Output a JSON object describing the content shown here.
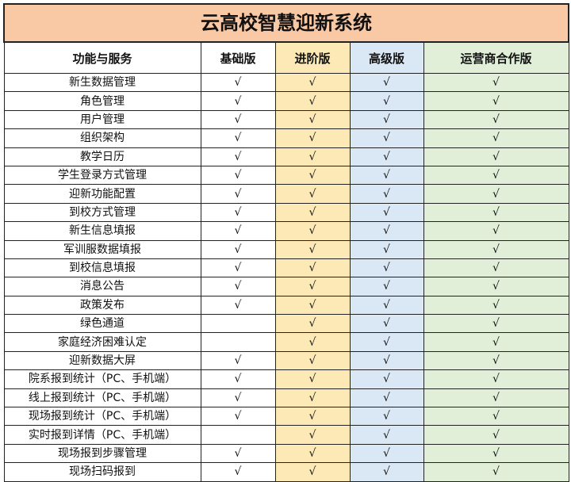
{
  "title": "云高校智慧迎新系统",
  "headers": [
    "功能与服务",
    "基础版",
    "进阶版",
    "高级版",
    "运营商合作版"
  ],
  "colors": {
    "title": "#f9c8a4",
    "advanced": "#fde9b5",
    "premium": "#dae8f5",
    "operator": "#e1efd9"
  },
  "check_mark": "√",
  "rows": [
    {
      "feature": "新生数据管理",
      "checks": [
        "√",
        "√",
        "√",
        "√"
      ]
    },
    {
      "feature": "角色管理",
      "checks": [
        "√",
        "√",
        "√",
        "√"
      ]
    },
    {
      "feature": "用户管理",
      "checks": [
        "√",
        "√",
        "√",
        "√"
      ]
    },
    {
      "feature": "组织架构",
      "checks": [
        "√",
        "√",
        "√",
        "√"
      ]
    },
    {
      "feature": "教学日历",
      "checks": [
        "√",
        "√",
        "√",
        "√"
      ]
    },
    {
      "feature": "学生登录方式管理",
      "checks": [
        "√",
        "√",
        "√",
        "√"
      ]
    },
    {
      "feature": "迎新功能配置",
      "checks": [
        "√",
        "√",
        "√",
        "√"
      ]
    },
    {
      "feature": "到校方式管理",
      "checks": [
        "√",
        "√",
        "√",
        "√"
      ]
    },
    {
      "feature": "新生信息填报",
      "checks": [
        "√",
        "√",
        "√",
        "√"
      ]
    },
    {
      "feature": "军训服数据填报",
      "checks": [
        "√",
        "√",
        "√",
        "√"
      ]
    },
    {
      "feature": "到校信息填报",
      "checks": [
        "√",
        "√",
        "√",
        "√"
      ]
    },
    {
      "feature": "消息公告",
      "checks": [
        "√",
        "√",
        "√",
        "√"
      ]
    },
    {
      "feature": "政策发布",
      "checks": [
        "√",
        "√",
        "√",
        "√"
      ]
    },
    {
      "feature": "绿色通道",
      "checks": [
        "",
        "√",
        "√",
        "√"
      ]
    },
    {
      "feature": "家庭经济困难认定",
      "checks": [
        "",
        "√",
        "√",
        "√"
      ]
    },
    {
      "feature": "迎新数据大屏",
      "checks": [
        "√",
        "√",
        "√",
        "√"
      ]
    },
    {
      "feature": "院系报到统计（PC、手机端）",
      "checks": [
        "√",
        "√",
        "√",
        "√"
      ]
    },
    {
      "feature": "线上报到统计（PC、手机端）",
      "checks": [
        "√",
        "√",
        "√",
        "√"
      ]
    },
    {
      "feature": "现场报到统计（PC、手机端）",
      "checks": [
        "√",
        "√",
        "√",
        "√"
      ]
    },
    {
      "feature": "实时报到详情（PC、手机端）",
      "checks": [
        "",
        "√",
        "√",
        "√"
      ]
    },
    {
      "feature": "现场报到步骤管理",
      "checks": [
        "√",
        "√",
        "√",
        "√"
      ]
    },
    {
      "feature": "现场扫码报到",
      "checks": [
        "√",
        "√",
        "√",
        "√"
      ]
    }
  ]
}
